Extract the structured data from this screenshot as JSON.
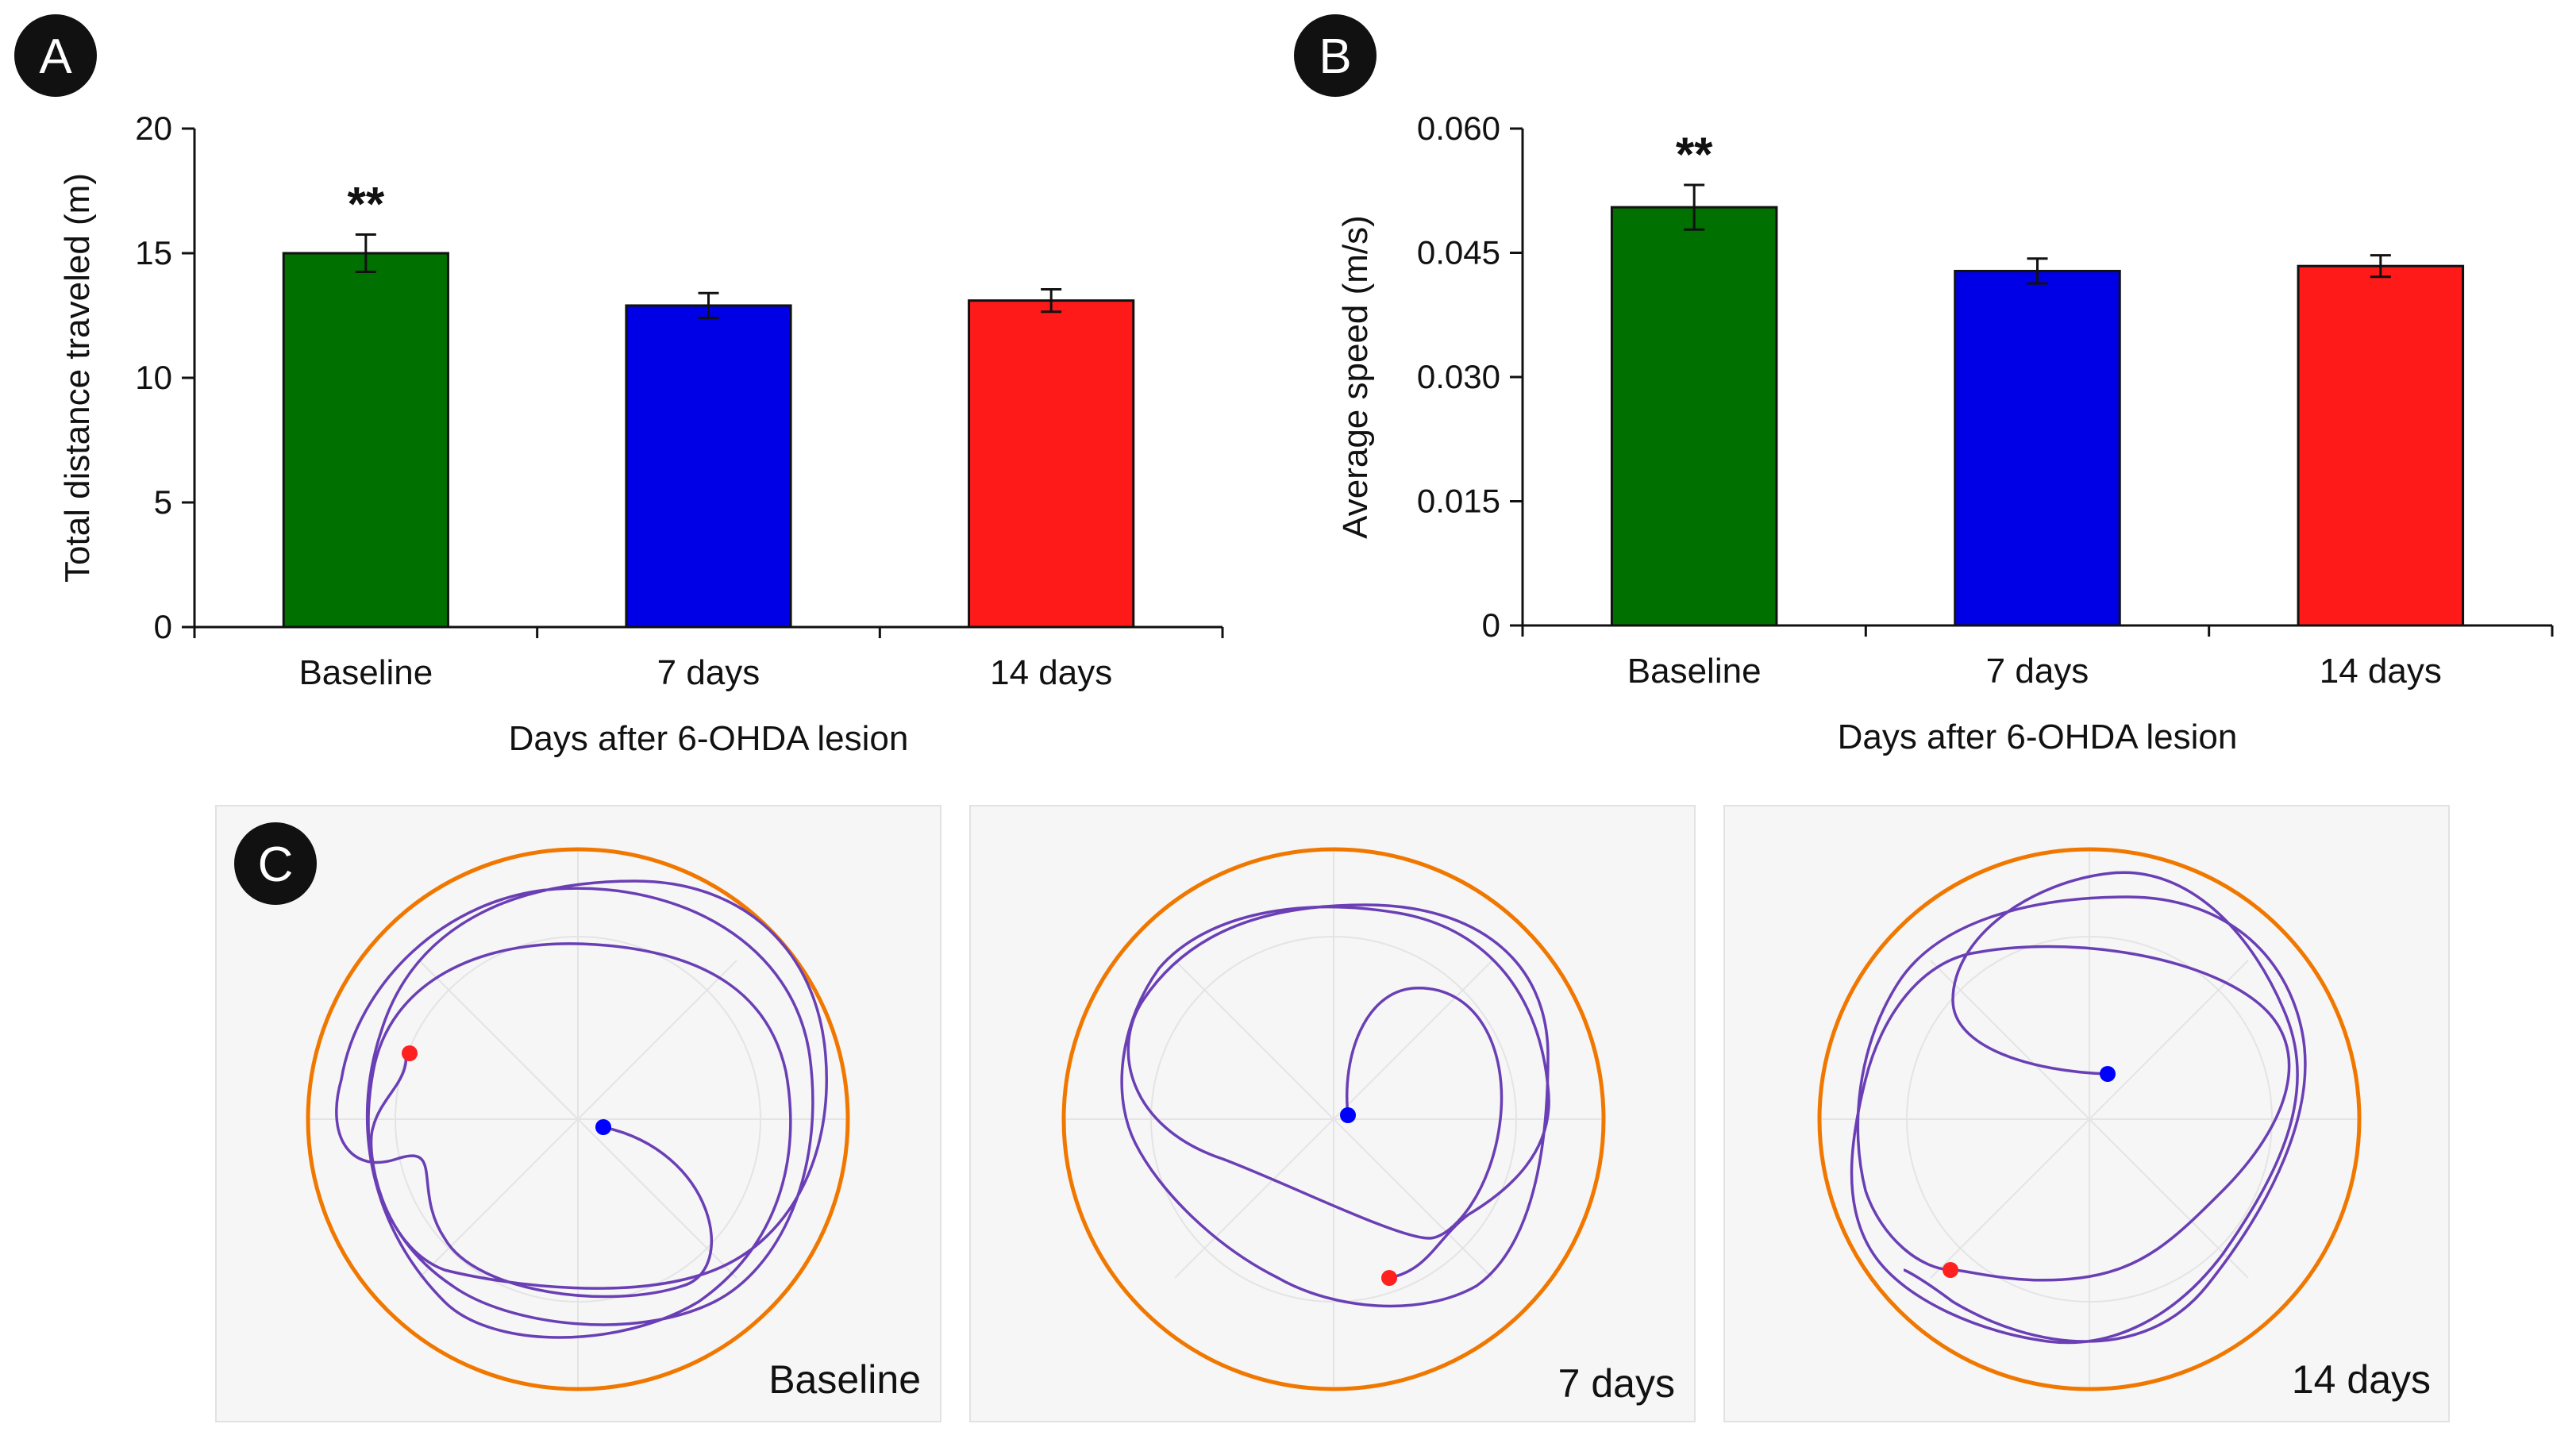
{
  "panels": {
    "A": "A",
    "B": "B",
    "C": "C"
  },
  "chart_data": [
    {
      "type": "bar",
      "panel": "A",
      "categories": [
        "Baseline",
        "7 days",
        "14 days"
      ],
      "values": [
        15.0,
        12.9,
        13.1
      ],
      "errors": [
        0.75,
        0.5,
        0.45
      ],
      "colors": [
        "#007000",
        "#0000e6",
        "#ff1a1a"
      ],
      "significance": [
        "**",
        "",
        ""
      ],
      "xlabel": "Days after 6-OHDA lesion",
      "ylabel": "Total distance traveled (m)",
      "ylim": [
        0,
        20
      ],
      "yticks": [
        0,
        5,
        10,
        15,
        20
      ],
      "ytick_labels": [
        "0",
        "5",
        "10",
        "15",
        "20"
      ],
      "grid": false
    },
    {
      "type": "bar",
      "panel": "B",
      "categories": [
        "Baseline",
        "7 days",
        "14 days"
      ],
      "values": [
        0.0505,
        0.0428,
        0.0434
      ],
      "errors": [
        0.0027,
        0.0015,
        0.0013
      ],
      "colors": [
        "#007000",
        "#0000e6",
        "#ff1a1a"
      ],
      "significance": [
        "**",
        "",
        ""
      ],
      "xlabel": "Days after 6-OHDA lesion",
      "ylabel": "Average speed (m/s)",
      "ylim": [
        0,
        0.06
      ],
      "yticks": [
        0,
        0.015,
        0.03,
        0.045,
        0.06
      ],
      "ytick_labels": [
        "0",
        "0.015",
        "0.030",
        "0.045",
        "0.060"
      ],
      "grid": false
    }
  ],
  "tracks": {
    "arena_color": "#f07800",
    "path_color": "#6a3fb5",
    "start_color": "#0000ff",
    "end_color": "#ff2020",
    "panels": [
      {
        "label": "Baseline"
      },
      {
        "label": "7 days"
      },
      {
        "label": "14 days"
      }
    ]
  }
}
